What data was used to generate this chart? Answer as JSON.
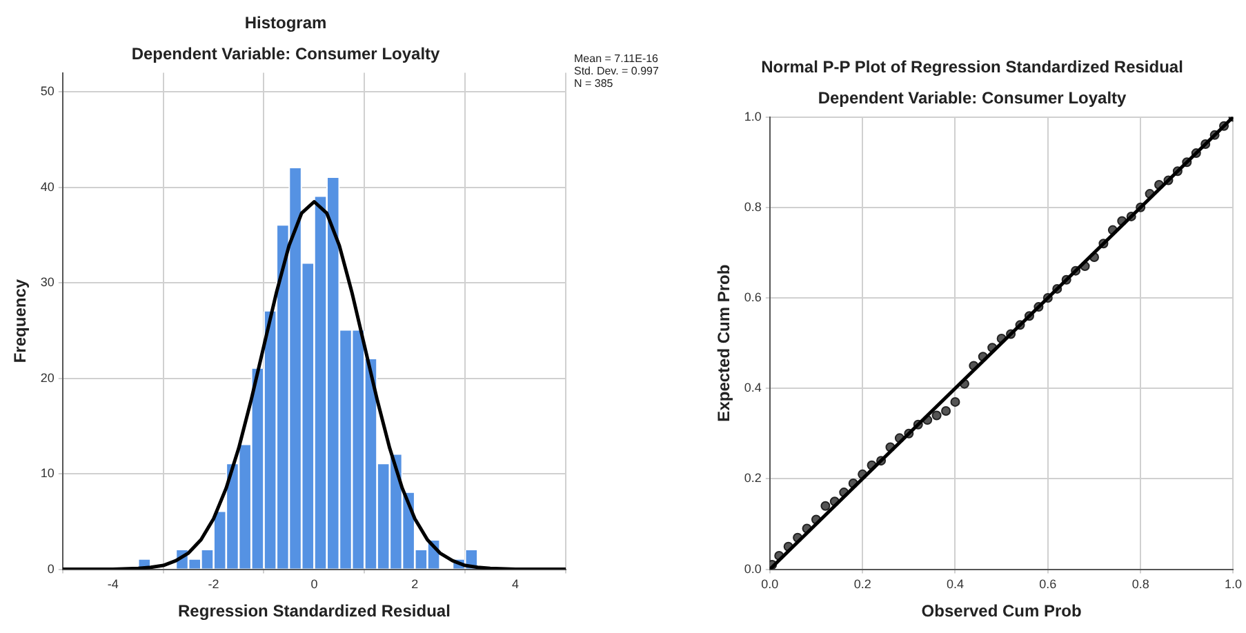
{
  "chart_data": [
    {
      "type": "histogram",
      "title": "Histogram",
      "subtitle": "Dependent Variable: Consumer Loyalty",
      "xlabel": "Regression Standardized Residual",
      "ylabel": "Frequency",
      "annotations": [
        "Mean = 7.11E-16",
        "Std. Dev. = 0.997",
        "N = 385"
      ],
      "xlim": [
        -5,
        5
      ],
      "xticks": [
        -4,
        -2,
        0,
        2,
        4
      ],
      "ylim": [
        0,
        52
      ],
      "yticks": [
        0,
        10,
        20,
        30,
        40,
        50
      ],
      "grid": true,
      "legend": false,
      "series": [
        {
          "type": "histogram",
          "color": "#5592e3",
          "bins": [
            -3.5,
            -3.25,
            -3,
            -2.75,
            -2.5,
            -2.25,
            -2,
            -1.75,
            -1.5,
            -1.25,
            -1,
            -0.75,
            -0.5,
            -0.25,
            0,
            0.25,
            0.5,
            0.75,
            1,
            1.25,
            1.5,
            1.75,
            2,
            2.25,
            2.5,
            2.75,
            3,
            3.25
          ],
          "values": [
            1,
            0,
            0,
            2,
            1,
            2,
            6,
            11,
            13,
            21,
            27,
            36,
            42,
            32,
            39,
            41,
            25,
            25,
            22,
            11,
            12,
            8,
            2,
            3,
            0,
            1,
            2
          ]
        },
        {
          "type": "line",
          "color": "#000000",
          "x": [
            -5,
            -4,
            -3.5,
            -3.25,
            -3,
            -2.75,
            -2.5,
            -2.25,
            -2,
            -1.75,
            -1.5,
            -1.25,
            -1,
            -0.75,
            -0.5,
            -0.25,
            0,
            0.25,
            0.5,
            0.75,
            1,
            1.25,
            1.5,
            1.75,
            2,
            2.25,
            2.5,
            2.75,
            3,
            3.25,
            3.5,
            4,
            5
          ],
          "values": [
            0,
            0,
            0.1,
            0.2,
            0.4,
            0.9,
            1.7,
            3.1,
            5.3,
            8.5,
            12.7,
            17.8,
            23.4,
            29,
            33.9,
            37.3,
            38.5,
            37.3,
            33.9,
            29,
            23.4,
            17.8,
            12.7,
            8.5,
            5.3,
            3.1,
            1.7,
            0.9,
            0.4,
            0.2,
            0.1,
            0,
            0
          ]
        }
      ]
    },
    {
      "type": "scatter",
      "title": "Normal P-P Plot of Regression Standardized Residual",
      "subtitle": "Dependent Variable: Consumer Loyalty",
      "xlabel": "Observed Cum Prob",
      "ylabel": "Expected Cum Prob",
      "xlim": [
        0,
        1
      ],
      "xticks": [
        {
          "value": 0,
          "label": "0.0"
        },
        {
          "value": 0.2,
          "label": "0.2"
        },
        {
          "value": 0.4,
          "label": "0.4"
        },
        {
          "value": 0.6,
          "label": "0.6"
        },
        {
          "value": 0.8,
          "label": "0.8"
        },
        {
          "value": 1,
          "label": "1.0"
        }
      ],
      "ylim": [
        0,
        1
      ],
      "yticks": [
        {
          "value": 0,
          "label": "0.0"
        },
        {
          "value": 0.2,
          "label": "0.2"
        },
        {
          "value": 0.4,
          "label": "0.4"
        },
        {
          "value": 0.6,
          "label": "0.6"
        },
        {
          "value": 0.8,
          "label": "0.8"
        },
        {
          "value": 1,
          "label": "1.0"
        }
      ],
      "grid": true,
      "legend": false,
      "series": [
        {
          "type": "scatter",
          "marker": "circle",
          "color": "#555555",
          "x": [
            0.005,
            0.02,
            0.04,
            0.06,
            0.08,
            0.1,
            0.12,
            0.14,
            0.16,
            0.18,
            0.2,
            0.22,
            0.24,
            0.26,
            0.28,
            0.3,
            0.32,
            0.34,
            0.36,
            0.38,
            0.4,
            0.42,
            0.44,
            0.46,
            0.48,
            0.5,
            0.52,
            0.54,
            0.56,
            0.58,
            0.6,
            0.62,
            0.64,
            0.66,
            0.68,
            0.7,
            0.72,
            0.74,
            0.76,
            0.78,
            0.8,
            0.82,
            0.84,
            0.86,
            0.88,
            0.9,
            0.92,
            0.94,
            0.96,
            0.98,
            1
          ],
          "values": [
            0.01,
            0.03,
            0.05,
            0.07,
            0.09,
            0.11,
            0.14,
            0.15,
            0.17,
            0.19,
            0.21,
            0.23,
            0.24,
            0.27,
            0.29,
            0.3,
            0.32,
            0.33,
            0.34,
            0.35,
            0.37,
            0.41,
            0.45,
            0.47,
            0.49,
            0.51,
            0.52,
            0.54,
            0.56,
            0.58,
            0.6,
            0.62,
            0.64,
            0.66,
            0.67,
            0.69,
            0.72,
            0.75,
            0.77,
            0.78,
            0.8,
            0.83,
            0.85,
            0.86,
            0.88,
            0.9,
            0.92,
            0.94,
            0.96,
            0.98,
            1
          ]
        },
        {
          "type": "line",
          "color": "#000000",
          "x": [
            0,
            1
          ],
          "values": [
            0,
            1
          ]
        }
      ]
    }
  ]
}
